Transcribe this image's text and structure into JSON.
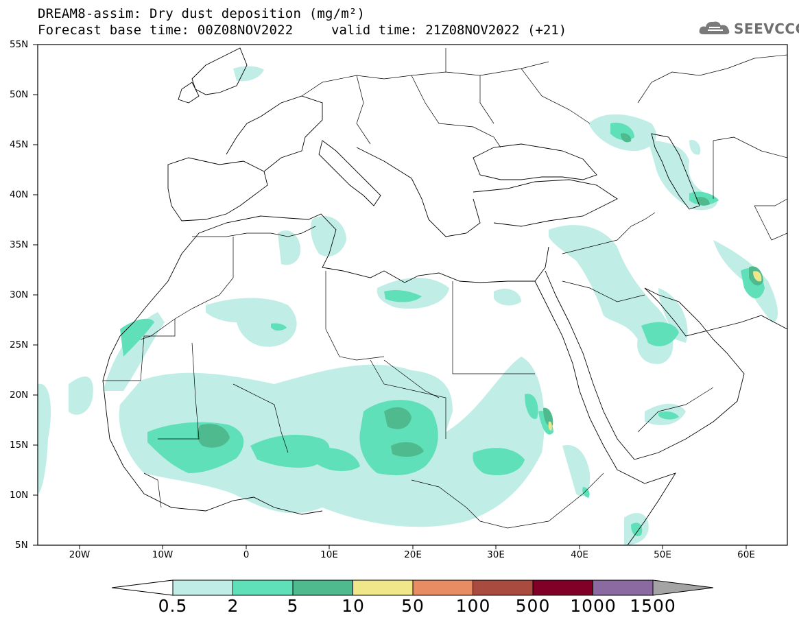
{
  "title": {
    "line1": "DREAM8-assim: Dry dust deposition (mg/m²)",
    "line2": "Forecast base time: 00Z08NOV2022",
    "valid": "valid time: 21Z08NOV2022 (+21)"
  },
  "logo": {
    "text": "SEEVCCC",
    "icon": "cloud-icon"
  },
  "map": {
    "lon_range": [
      -25,
      65
    ],
    "lat_range": [
      5,
      55
    ],
    "lat_ticks": [
      "55N",
      "50N",
      "45N",
      "40N",
      "35N",
      "30N",
      "25N",
      "20N",
      "15N",
      "10N",
      "5N"
    ],
    "lon_ticks": [
      "20W",
      "10W",
      "0",
      "10E",
      "20E",
      "30E",
      "40E",
      "50E",
      "60E"
    ]
  },
  "colorbar": {
    "labels": [
      "0.5",
      "2",
      "5",
      "10",
      "50",
      "100",
      "500",
      "1000",
      "1500"
    ],
    "colors": [
      "#c0eee6",
      "#5fe0b9",
      "#4fba8e",
      "#f0e68a",
      "#e88c64",
      "#aa4b40",
      "#800028",
      "#8a6aa0"
    ],
    "under_color": "#ffffff",
    "over_color": "#a4a4a4"
  }
}
